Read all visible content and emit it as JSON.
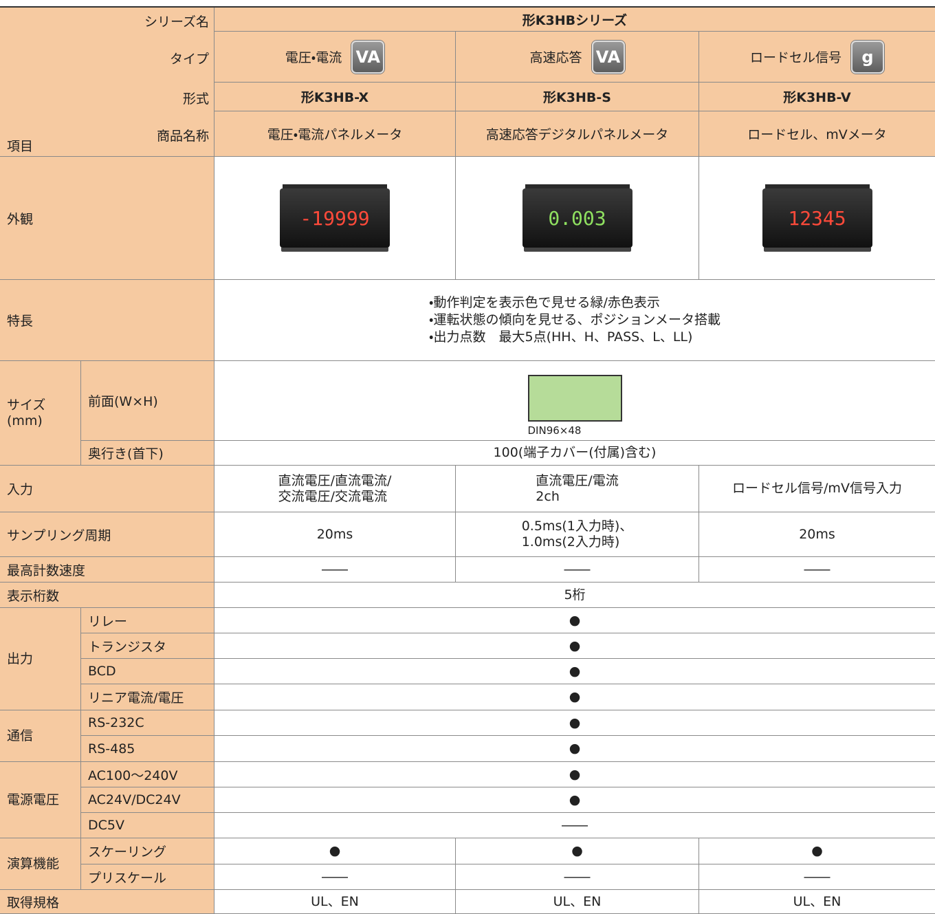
{
  "header": {
    "corner": "項目",
    "labels": [
      "シリーズ名",
      "タイプ",
      "形式",
      "商品名称"
    ],
    "series": "形K3HBシリーズ",
    "types": [
      {
        "label": "電圧・電流",
        "icon": "VA"
      },
      {
        "label": "高速応答",
        "icon": "VA"
      },
      {
        "label": "ロードセル信号",
        "icon": "g"
      }
    ],
    "models": [
      "形K3HB-X",
      "形K3HB-S",
      "形K3HB-V"
    ],
    "names": [
      "電圧・電流パネルメータ",
      "高速応答デジタルパネルメータ",
      "ロードセル、mVメータ"
    ]
  },
  "rows": [
    {
      "label": "外観",
      "displays": [
        "-19999",
        "0.003",
        "12345"
      ]
    },
    {
      "label": "特長",
      "lines": [
        "・動作判定を表示色で見せる緑/赤色表示",
        "・運転状態の傾向を見せる、ポジションメータ搭載",
        "・出力点数　最大5点(HH、H、PASS、L、LL)"
      ]
    },
    {
      "label": "サイズ\n(mm)",
      "items": [
        {
          "label": "前面(W×H)",
          "din": "DIN96×48"
        },
        {
          "label": "奥行き(首下)",
          "cells": [
            "100(端子カバー(付属)含む)"
          ]
        }
      ]
    },
    {
      "label": "入力",
      "cells": [
        "直流電圧/直流電流/\n交流電圧/交流電流",
        "直流電圧/電流\n2ch",
        "ロードセル信号/mV信号入力"
      ]
    },
    {
      "label": "サンプリング周期",
      "cells": [
        "20ms",
        "0.5ms(1入力時)、\n1.0ms(2入力時)",
        "20ms"
      ]
    },
    {
      "label": "最高計数速度",
      "cells": [
        "――",
        "――",
        "――"
      ]
    },
    {
      "label": "表示桁数",
      "cells": [
        "5桁"
      ]
    },
    {
      "label": "出力",
      "items": [
        {
          "label": "リレー",
          "cells": [
            "●"
          ]
        },
        {
          "label": "トランジスタ",
          "cells": [
            "●"
          ]
        },
        {
          "label": "BCD",
          "cells": [
            "●"
          ]
        },
        {
          "label": "リニア電流/電圧",
          "cells": [
            "●"
          ]
        }
      ]
    },
    {
      "label": "通信",
      "items": [
        {
          "label": "RS-232C",
          "cells": [
            "●"
          ]
        },
        {
          "label": "RS-485",
          "cells": [
            "●"
          ]
        }
      ]
    },
    {
      "label": "電源電圧",
      "items": [
        {
          "label": "AC100〜240V",
          "cells": [
            "●"
          ]
        },
        {
          "label": "AC24V/DC24V",
          "cells": [
            "●"
          ]
        },
        {
          "label": "DC5V",
          "cells": [
            "――"
          ]
        }
      ]
    },
    {
      "label": "演算機能",
      "items": [
        {
          "label": "スケーリング",
          "cells": [
            "●",
            "●",
            "●"
          ]
        },
        {
          "label": "プリスケール",
          "cells": [
            "――",
            "――",
            "――"
          ]
        }
      ]
    },
    {
      "label": "取得規格",
      "cells": [
        "UL、EN",
        "UL、EN",
        "UL、EN"
      ]
    }
  ]
}
